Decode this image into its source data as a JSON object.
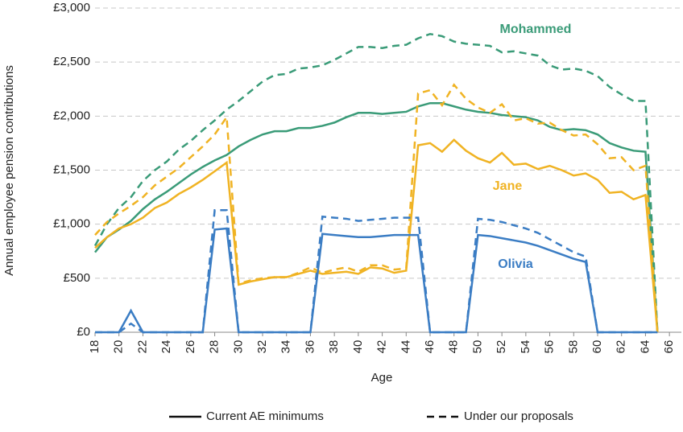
{
  "chart_data": {
    "type": "line",
    "ylabel": "Annual employee pension contributions",
    "xlabel": "Age",
    "x": [
      18,
      19,
      20,
      21,
      22,
      23,
      24,
      25,
      26,
      27,
      28,
      29,
      30,
      31,
      32,
      33,
      34,
      35,
      36,
      37,
      38,
      39,
      40,
      41,
      42,
      43,
      44,
      45,
      46,
      47,
      48,
      49,
      50,
      51,
      52,
      53,
      54,
      55,
      56,
      57,
      58,
      59,
      60,
      61,
      62,
      63,
      64,
      65
    ],
    "xlim": [
      18,
      67
    ],
    "xticks": [
      18,
      20,
      22,
      24,
      26,
      28,
      30,
      32,
      34,
      36,
      38,
      40,
      42,
      44,
      46,
      48,
      50,
      52,
      54,
      56,
      58,
      60,
      62,
      64,
      66
    ],
    "ylim": [
      0,
      3000
    ],
    "yticks": [
      {
        "value": 0,
        "label": "£0"
      },
      {
        "value": 500,
        "label": "£500"
      },
      {
        "value": 1000,
        "label": "£1,000"
      },
      {
        "value": 1500,
        "label": "£1,500"
      },
      {
        "value": 2000,
        "label": "£2,000"
      },
      {
        "value": 2500,
        "label": "£2,500"
      },
      {
        "value": 3000,
        "label": "£3,000"
      }
    ],
    "grid": true,
    "legend": [
      {
        "label": "Current AE minimums",
        "dash": "solid"
      },
      {
        "label": "Under our proposals",
        "dash": "dashed"
      }
    ],
    "people": [
      {
        "name": "Mohammed",
        "color": "#3a9b78",
        "current": [
          740,
          880,
          950,
          1030,
          1140,
          1230,
          1300,
          1380,
          1460,
          1530,
          1590,
          1640,
          1720,
          1780,
          1830,
          1860,
          1860,
          1890,
          1890,
          1910,
          1940,
          1990,
          2030,
          2030,
          2020,
          2030,
          2040,
          2090,
          2120,
          2120,
          2090,
          2060,
          2040,
          2030,
          2010,
          2000,
          1990,
          1960,
          1900,
          1870,
          1880,
          1870,
          1830,
          1750,
          1710,
          1680,
          1670,
          0
        ],
        "proposals": [
          800,
          1000,
          1150,
          1250,
          1400,
          1500,
          1580,
          1690,
          1770,
          1870,
          1960,
          2060,
          2140,
          2230,
          2320,
          2380,
          2390,
          2440,
          2450,
          2470,
          2520,
          2580,
          2640,
          2640,
          2630,
          2650,
          2660,
          2720,
          2760,
          2740,
          2690,
          2670,
          2660,
          2650,
          2590,
          2600,
          2580,
          2560,
          2470,
          2430,
          2440,
          2420,
          2370,
          2270,
          2200,
          2140,
          2140,
          0
        ]
      },
      {
        "name": "Jane",
        "color": "#f0b323",
        "current": [
          780,
          880,
          960,
          1000,
          1060,
          1150,
          1200,
          1280,
          1340,
          1410,
          1490,
          1570,
          440,
          470,
          490,
          510,
          510,
          540,
          570,
          540,
          550,
          560,
          540,
          600,
          590,
          550,
          570,
          1730,
          1750,
          1670,
          1780,
          1680,
          1610,
          1570,
          1660,
          1550,
          1560,
          1510,
          1540,
          1500,
          1450,
          1470,
          1410,
          1290,
          1300,
          1230,
          1270,
          0
        ],
        "proposals": [
          900,
          1020,
          1100,
          1170,
          1250,
          1360,
          1440,
          1520,
          1620,
          1720,
          1830,
          1990,
          450,
          480,
          500,
          510,
          510,
          550,
          600,
          550,
          580,
          600,
          560,
          620,
          620,
          580,
          590,
          2210,
          2240,
          2100,
          2290,
          2160,
          2080,
          2030,
          2110,
          1960,
          1980,
          1930,
          1940,
          1870,
          1820,
          1830,
          1740,
          1610,
          1620,
          1500,
          1540,
          0
        ]
      },
      {
        "name": "Olivia",
        "color": "#3b7dc4",
        "current": [
          0,
          0,
          0,
          200,
          0,
          0,
          0,
          0,
          0,
          0,
          950,
          960,
          0,
          0,
          0,
          0,
          0,
          0,
          0,
          910,
          900,
          890,
          880,
          880,
          890,
          900,
          900,
          900,
          0,
          0,
          0,
          0,
          900,
          890,
          870,
          850,
          830,
          800,
          760,
          720,
          680,
          650,
          0,
          0,
          0,
          0,
          0,
          0
        ],
        "proposals": [
          0,
          0,
          0,
          80,
          0,
          0,
          0,
          0,
          0,
          0,
          1130,
          1130,
          0,
          0,
          0,
          0,
          0,
          0,
          0,
          1070,
          1060,
          1050,
          1030,
          1040,
          1050,
          1060,
          1060,
          1060,
          0,
          0,
          0,
          0,
          1050,
          1040,
          1020,
          990,
          960,
          920,
          860,
          800,
          740,
          700,
          0,
          0,
          0,
          0,
          0,
          0
        ]
      }
    ]
  }
}
